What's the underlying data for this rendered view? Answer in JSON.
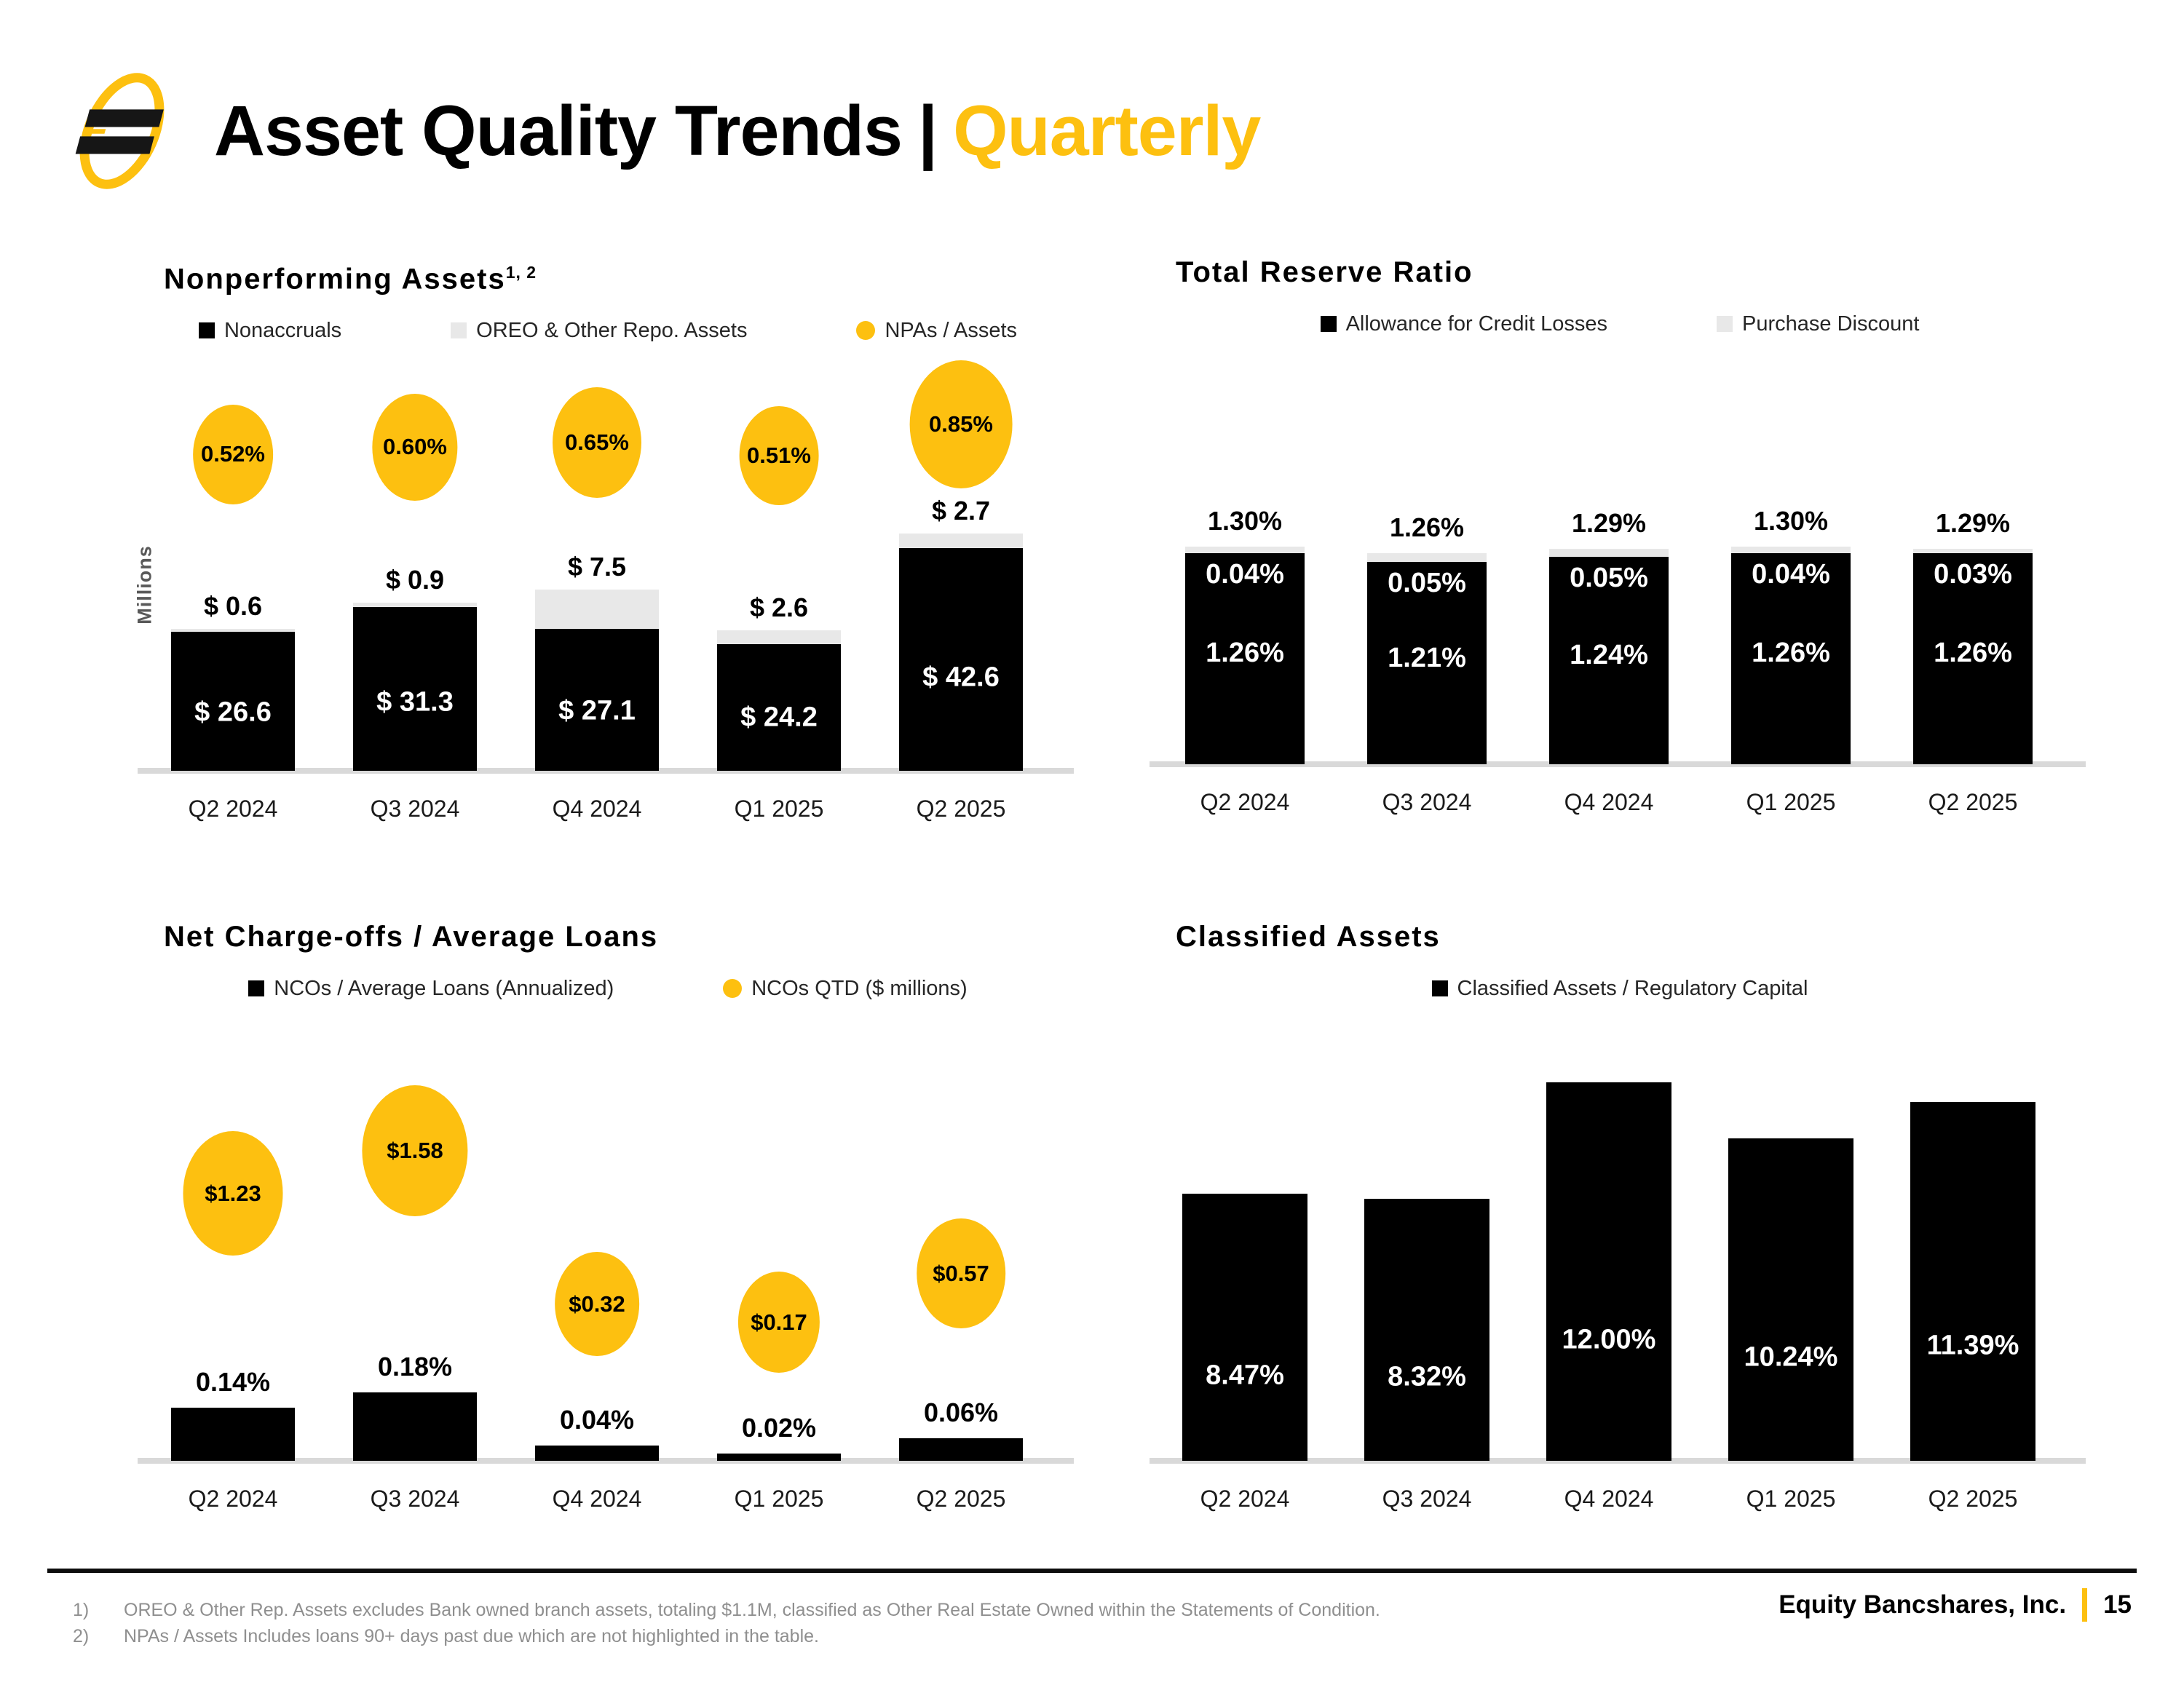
{
  "page": {
    "title": {
      "main": "Asset Quality Trends",
      "separator": "|",
      "accent": "Quarterly"
    },
    "footnotes": [
      {
        "num": "1)",
        "text": "OREO & Other Rep. Assets excludes Bank owned branch assets, totaling $1.1M, classified as Other Real Estate Owned within the Statements of Condition."
      },
      {
        "num": "2)",
        "text": "NPAs / Assets Includes loans 90+ days past due which are not highlighted in the table."
      }
    ],
    "footer": {
      "company": "Equity Bancshares, Inc.",
      "separator": "|",
      "page_number": "15"
    },
    "colors": {
      "accent_gold": "#FDC010",
      "bar_black": "#000000",
      "bar_gray": "#E8E8E8",
      "axis_gray": "#D9D9D9",
      "footnote_gray": "#8F8F8F"
    }
  },
  "chart_data": [
    {
      "id": "nonperforming_assets",
      "type": "bar",
      "variant": "stacked-with-bubbles",
      "title": "Nonperforming Assets",
      "title_sup": "1, 2",
      "ylabel": "Millions",
      "ylim": [
        0,
        75
      ],
      "legend_position": "top",
      "categories": [
        "Q2 2024",
        "Q3 2024",
        "Q4 2024",
        "Q1 2025",
        "Q2 2025"
      ],
      "series": [
        {
          "name": "Nonaccruals",
          "color": "#000000",
          "values": [
            26.6,
            31.3,
            27.1,
            24.2,
            42.6
          ],
          "labels": [
            "$ 26.6",
            "$ 31.3",
            "$ 27.1",
            "$ 24.2",
            "$ 42.6"
          ]
        },
        {
          "name": "OREO & Other Repo. Assets",
          "color": "#E8E8E8",
          "values": [
            0.6,
            0.9,
            7.5,
            2.6,
            2.7
          ],
          "labels": [
            "$ 0.6",
            "$ 0.9",
            "$ 7.5",
            "$ 2.6",
            "$ 2.7"
          ]
        }
      ],
      "bubble_series": {
        "name": "NPAs / Assets",
        "color": "#FDC010",
        "values": [
          0.52,
          0.6,
          0.65,
          0.51,
          0.85
        ],
        "labels": [
          "0.52%",
          "0.60%",
          "0.65%",
          "0.51%",
          "0.85%"
        ]
      }
    },
    {
      "id": "total_reserve_ratio",
      "type": "bar",
      "variant": "stacked-with-total-labels",
      "title": "Total Reserve Ratio",
      "ylim": [
        0,
        2.35
      ],
      "legend_position": "top",
      "categories": [
        "Q2 2024",
        "Q3 2024",
        "Q4 2024",
        "Q1 2025",
        "Q2 2025"
      ],
      "series": [
        {
          "name": "Allowance for Credit Losses",
          "color": "#000000",
          "values": [
            1.26,
            1.21,
            1.24,
            1.26,
            1.26
          ],
          "labels": [
            "1.26%",
            "1.21%",
            "1.24%",
            "1.26%",
            "1.26%"
          ]
        },
        {
          "name": "Purchase Discount",
          "color": "#E8E8E8",
          "values": [
            0.04,
            0.05,
            0.05,
            0.04,
            0.03
          ],
          "labels": [
            "0.04%",
            "0.05%",
            "0.05%",
            "0.04%",
            "0.03%"
          ]
        }
      ],
      "totals": [
        "1.30%",
        "1.26%",
        "1.29%",
        "1.30%",
        "1.29%"
      ]
    },
    {
      "id": "net_charge_offs",
      "type": "bar",
      "variant": "bars-with-bubbles",
      "title": "Net Charge-offs / Average Loans",
      "ylim": [
        0,
        1.05
      ],
      "legend_position": "top",
      "categories": [
        "Q2 2024",
        "Q3 2024",
        "Q4 2024",
        "Q1 2025",
        "Q2 2025"
      ],
      "series": [
        {
          "name": "NCOs / Average Loans (Annualized)",
          "color": "#000000",
          "values": [
            0.14,
            0.18,
            0.04,
            0.02,
            0.06
          ],
          "labels": [
            "0.14%",
            "0.18%",
            "0.04%",
            "0.02%",
            "0.06%"
          ]
        }
      ],
      "bubble_series": {
        "name": "NCOs QTD ($ millions)",
        "color": "#FDC010",
        "values": [
          1.23,
          1.58,
          0.32,
          0.17,
          0.57
        ],
        "labels": [
          "$1.23",
          "$1.58",
          "$0.32",
          "$0.17",
          "$0.57"
        ]
      }
    },
    {
      "id": "classified_assets",
      "type": "bar",
      "variant": "bars-label-inside",
      "title": "Classified Assets",
      "ylim": [
        0,
        12.75
      ],
      "legend_position": "top",
      "categories": [
        "Q2 2024",
        "Q3 2024",
        "Q4 2024",
        "Q1 2025",
        "Q2 2025"
      ],
      "series": [
        {
          "name": "Classified Assets / Regulatory Capital",
          "color": "#000000",
          "values": [
            8.47,
            8.32,
            12.0,
            10.24,
            11.39
          ],
          "labels": [
            "8.47%",
            "8.32%",
            "12.00%",
            "10.24%",
            "11.39%"
          ]
        }
      ]
    }
  ]
}
